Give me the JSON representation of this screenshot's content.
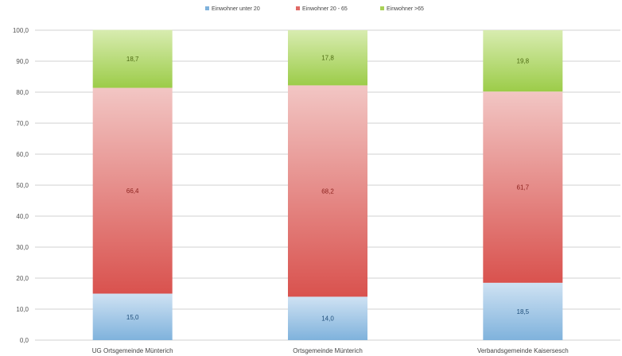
{
  "chart_data": {
    "type": "bar",
    "stacked": true,
    "categories": [
      "UG Ortsgemeinde Münterich",
      "Ortsgemeinde Münterich",
      "Verbandsgemeinde Kaisersesch"
    ],
    "series": [
      {
        "name": "Einwohner unter 20",
        "color": "#7fb2dc",
        "values": [
          15.0,
          14.0,
          18.5
        ]
      },
      {
        "name": "Einwohner 20 - 65",
        "color": "#e06a66",
        "values": [
          66.4,
          68.2,
          61.7
        ]
      },
      {
        "name": "Einwohner >65",
        "color": "#a9d156",
        "values": [
          18.7,
          17.8,
          19.8
        ]
      }
    ],
    "ylim": [
      0,
      100
    ],
    "yticks": [
      "0,0",
      "10,0",
      "20,0",
      "30,0",
      "40,0",
      "50,0",
      "60,0",
      "70,0",
      "80,0",
      "90,0",
      "100,0"
    ],
    "grid": true,
    "legend": "top"
  }
}
